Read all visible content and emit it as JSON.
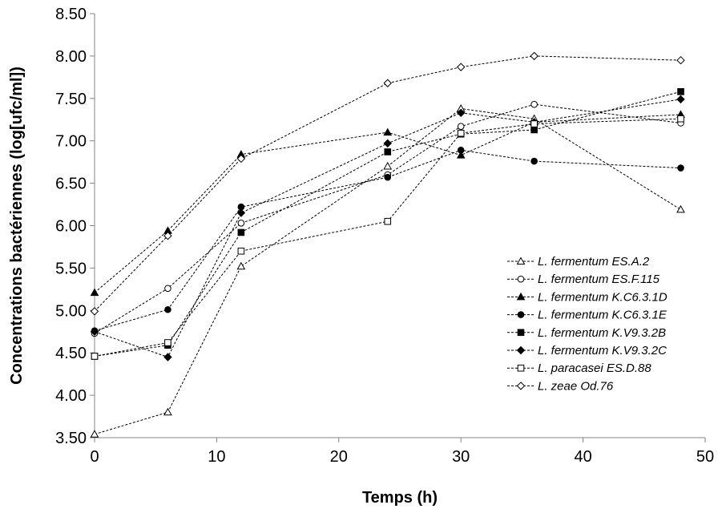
{
  "chart_data": {
    "type": "line",
    "xlabel": "Temps (h)",
    "ylabel": "Concentrations bactériennes (log[ufc/ml])",
    "xlim": [
      0,
      50
    ],
    "ylim": [
      3.5,
      8.5
    ],
    "xticks": [
      0,
      10,
      20,
      30,
      40,
      50
    ],
    "xtick_labels": [
      "0",
      "10",
      "20",
      "30",
      "40",
      "50"
    ],
    "yticks": [
      3.5,
      4.0,
      4.5,
      5.0,
      5.5,
      6.0,
      6.5,
      7.0,
      7.5,
      8.0,
      8.5
    ],
    "ytick_labels": [
      "3.50",
      "4.00",
      "4.50",
      "5.00",
      "5.50",
      "6.00",
      "6.50",
      "7.00",
      "7.50",
      "8.00",
      "8.50"
    ],
    "grid": false,
    "legend_position": "bottom-right",
    "line_style": "dashed",
    "line_color": "#000000",
    "x": [
      0,
      6,
      12,
      24,
      30,
      36,
      48
    ],
    "series": [
      {
        "name": "L. fermentum ES.A.2",
        "marker": "triangle-open",
        "values": [
          3.54,
          3.8,
          5.52,
          6.7,
          7.38,
          7.26,
          6.19
        ]
      },
      {
        "name": "L. fermentum ES.F.115",
        "marker": "circle-open",
        "values": [
          4.73,
          5.26,
          6.03,
          6.6,
          7.17,
          7.43,
          7.21
        ]
      },
      {
        "name": "L. fermentum K.C6.3.1D",
        "marker": "triangle-filled",
        "values": [
          5.21,
          5.94,
          6.84,
          7.1,
          6.83,
          7.22,
          7.31
        ]
      },
      {
        "name": "L. fermentum K.C6.3.1E",
        "marker": "circle-filled",
        "values": [
          4.76,
          5.01,
          6.22,
          6.57,
          6.89,
          6.76,
          6.68
        ]
      },
      {
        "name": "L. fermentum K.V9.3.2B",
        "marker": "square-filled",
        "values": [
          4.46,
          4.59,
          5.92,
          6.87,
          7.08,
          7.13,
          7.58
        ]
      },
      {
        "name": "L. fermentum K.V9.3.2C",
        "marker": "diamond-filled",
        "values": [
          4.75,
          4.45,
          6.15,
          6.97,
          7.33,
          7.22,
          7.49
        ]
      },
      {
        "name": "L. paracasei ES.D.88",
        "marker": "square-open",
        "values": [
          4.46,
          4.62,
          5.7,
          6.05,
          7.09,
          7.2,
          7.26
        ]
      },
      {
        "name": "L. zeae Od.76",
        "marker": "diamond-open",
        "values": [
          4.99,
          5.88,
          6.79,
          7.68,
          7.87,
          8.0,
          7.95
        ]
      }
    ]
  }
}
